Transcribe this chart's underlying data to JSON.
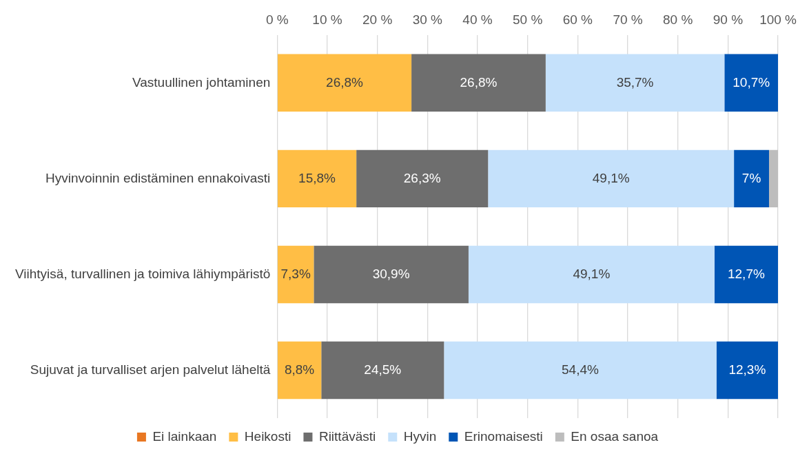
{
  "chart_data": {
    "type": "bar",
    "orientation": "horizontal",
    "stacked": true,
    "categories": [
      "Vastuullinen johtaminen",
      "Hyvinvoinnin edistäminen ennakoivasti",
      "Viihtyisä, turvallinen ja toimiva lähiympäristö",
      "Sujuvat ja turvalliset arjen palvelut läheltä"
    ],
    "series": [
      {
        "name": "Ei lainkaan",
        "color": "#e87722",
        "values": [
          0,
          0,
          0,
          0
        ],
        "value_labels": [
          null,
          null,
          null,
          null
        ]
      },
      {
        "name": "Heikosti",
        "color": "#ffbe45",
        "values": [
          26.8,
          15.8,
          7.3,
          8.8
        ],
        "value_labels": [
          "26,8%",
          "15,8%",
          "7,3%",
          "8,8%"
        ]
      },
      {
        "name": "Riittävästi",
        "color": "#6e6e6e",
        "values": [
          26.8,
          26.3,
          30.9,
          24.5
        ],
        "value_labels": [
          "26,8%",
          "26,3%",
          "30,9%",
          "24,5%"
        ]
      },
      {
        "name": "Hyvin",
        "color": "#c5e1fb",
        "values": [
          35.7,
          49.1,
          49.1,
          54.4
        ],
        "value_labels": [
          "35,7%",
          "49,1%",
          "49,1%",
          "54,4%"
        ]
      },
      {
        "name": "Erinomaisesti",
        "color": "#0055b5",
        "values": [
          10.7,
          7,
          12.7,
          12.3
        ],
        "value_labels": [
          "10,7%",
          "7%",
          "12,7%",
          "12,3%"
        ]
      },
      {
        "name": "En osaa sanoa",
        "color": "#bdbdbd",
        "values": [
          0,
          1.8,
          0,
          0
        ],
        "value_labels": [
          null,
          null,
          null,
          null
        ]
      }
    ],
    "xlim": [
      0,
      100
    ],
    "xticks": [
      {
        "value": 0,
        "label": "0 %"
      },
      {
        "value": 10,
        "label": "10 %"
      },
      {
        "value": 20,
        "label": "20 %"
      },
      {
        "value": 30,
        "label": "30 %"
      },
      {
        "value": 40,
        "label": "40 %"
      },
      {
        "value": 50,
        "label": "50 %"
      },
      {
        "value": 60,
        "label": "60 %"
      },
      {
        "value": 70,
        "label": "70 %"
      },
      {
        "value": 80,
        "label": "80 %"
      },
      {
        "value": 90,
        "label": "90 %"
      },
      {
        "value": 100,
        "label": "100 %"
      }
    ],
    "grid": "x",
    "legend": "bottom"
  }
}
